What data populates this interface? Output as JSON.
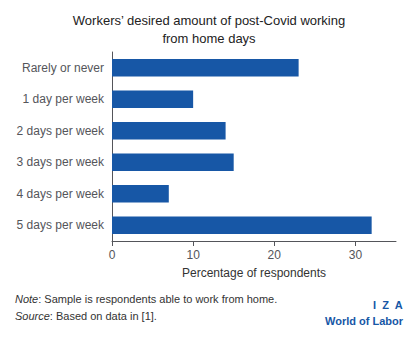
{
  "chart_data": {
    "type": "bar",
    "orientation": "horizontal",
    "title": "Workers’ desired amount of post-Covid working\nfrom home days",
    "categories": [
      "Rarely or never",
      "1 day per week",
      "2 days per week",
      "3 days per week",
      "4 days per week",
      "5 days per week"
    ],
    "values": [
      23,
      10,
      14,
      15,
      7,
      32
    ],
    "color": "#1757a6",
    "xlabel": "Percentage of respondents",
    "xlim": [
      0,
      35
    ],
    "xticks": [
      0,
      10,
      20,
      30
    ],
    "grid": false,
    "annotations": [
      {
        "text": "Note: Sample is respondents able to work from home."
      },
      {
        "text": "Source: Based on data in [1]."
      },
      {
        "text": "I  Z  A",
        "color": "#1757a6"
      },
      {
        "text": "World of Labor",
        "color": "#1757a6"
      }
    ]
  }
}
